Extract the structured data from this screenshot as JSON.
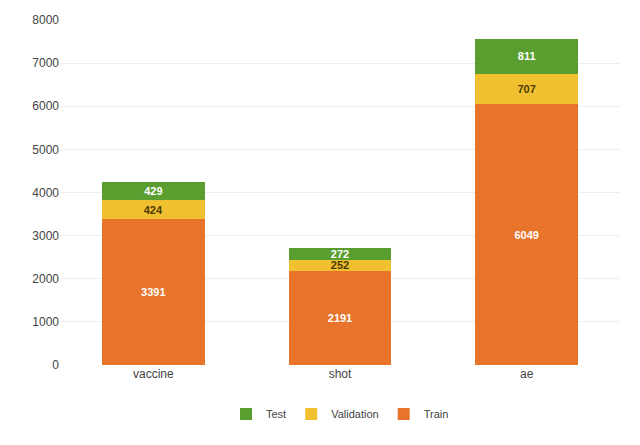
{
  "chart_data": {
    "type": "bar",
    "stacked": true,
    "categories": [
      "vaccine",
      "shot",
      "ae"
    ],
    "series": [
      {
        "name": "Train",
        "color": "#E8732A",
        "values": [
          3391,
          2191,
          6049
        ]
      },
      {
        "name": "Validation",
        "color": "#F0C030",
        "values": [
          424,
          252,
          707
        ]
      },
      {
        "name": "Test",
        "color": "#5A9E2F",
        "values": [
          429,
          272,
          811
        ]
      }
    ],
    "ylim": [
      0,
      8000
    ],
    "yticks": [
      0,
      1000,
      2000,
      3000,
      4000,
      5000,
      6000,
      7000,
      8000
    ],
    "grid": true,
    "legend": "bottom",
    "data_labels": true
  }
}
